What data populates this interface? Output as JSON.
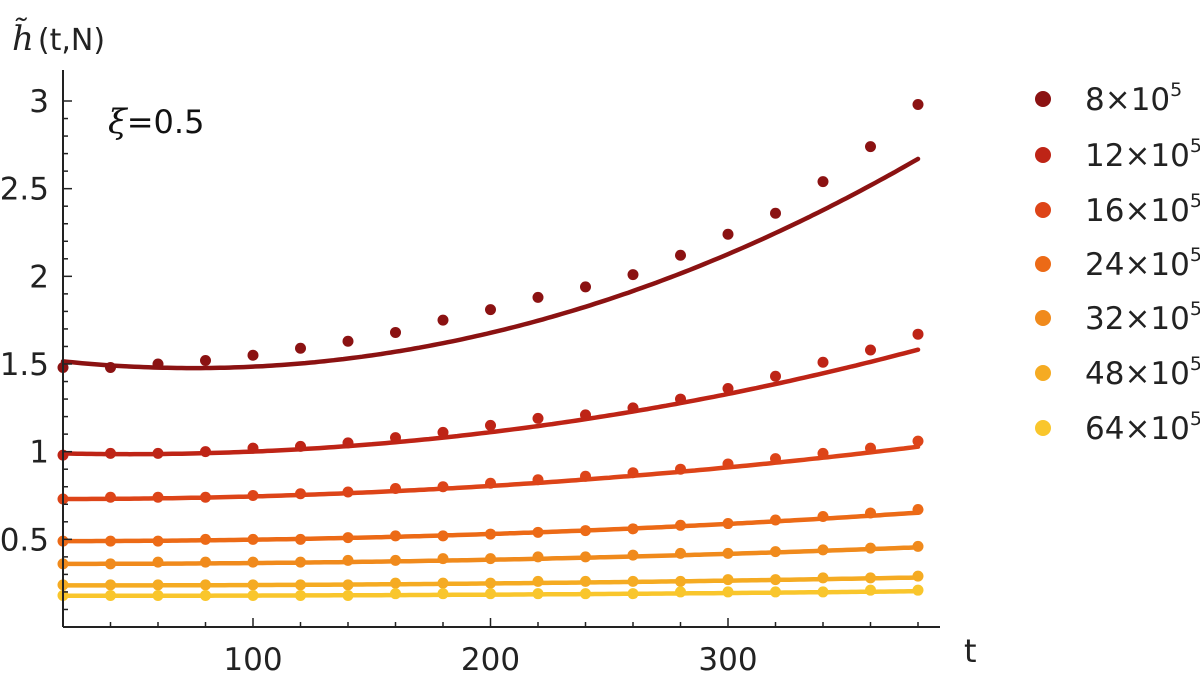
{
  "chart_data": {
    "type": "scatter",
    "ylabel": "h̃",
    "ylabel_args": "(t,N)",
    "xlabel": "t",
    "annotation": {
      "symbol": "ξ",
      "text": "=0.5"
    },
    "xlim": [
      20,
      400
    ],
    "ylim": [
      0,
      3.15
    ],
    "x_ticks": [
      100,
      200,
      300
    ],
    "y_ticks": [
      0.5,
      1,
      1.5,
      2,
      2.5,
      3
    ],
    "x_tick_labels": [
      "100",
      "200",
      "300"
    ],
    "y_tick_labels": [
      "0.5",
      "1",
      "1.5",
      "2",
      "2.5",
      "3"
    ],
    "legend_position": "right",
    "x": [
      20,
      40,
      60,
      80,
      100,
      120,
      140,
      160,
      180,
      200,
      220,
      240,
      260,
      280,
      300,
      320,
      340,
      360,
      380
    ],
    "series": [
      {
        "name": "8×10",
        "exp": "5",
        "color": "#8b1212",
        "values": [
          1.48,
          1.48,
          1.5,
          1.52,
          1.55,
          1.59,
          1.63,
          1.68,
          1.75,
          1.81,
          1.88,
          1.94,
          2.01,
          2.12,
          2.24,
          2.36,
          2.54,
          2.74,
          2.98
        ],
        "fit": [
          1.515,
          -0.0014,
          1.28e-05
        ]
      },
      {
        "name": "12×10",
        "exp": "5",
        "color": "#be2416",
        "values": [
          0.98,
          0.99,
          0.99,
          1.0,
          1.02,
          1.03,
          1.05,
          1.08,
          1.11,
          1.15,
          1.19,
          1.21,
          1.25,
          1.3,
          1.36,
          1.43,
          1.51,
          1.58,
          1.67
        ],
        "fit": [
          0.99,
          -0.0003,
          5.4e-06
        ]
      },
      {
        "name": "16×10",
        "exp": "5",
        "color": "#dd4418",
        "values": [
          0.73,
          0.74,
          0.74,
          0.74,
          0.75,
          0.76,
          0.77,
          0.79,
          0.8,
          0.82,
          0.84,
          0.86,
          0.88,
          0.9,
          0.93,
          0.96,
          0.99,
          1.02,
          1.06
        ],
        "fit": [
          0.73,
          0.0,
          2.3e-06
        ]
      },
      {
        "name": "24×10",
        "exp": "5",
        "color": "#ec6a16",
        "values": [
          0.49,
          0.49,
          0.49,
          0.5,
          0.5,
          0.5,
          0.51,
          0.52,
          0.52,
          0.53,
          0.54,
          0.55,
          0.56,
          0.58,
          0.59,
          0.61,
          0.63,
          0.65,
          0.67
        ],
        "fit": [
          0.49,
          0.0,
          1.25e-06
        ]
      },
      {
        "name": "32×10",
        "exp": "5",
        "color": "#f08a1c",
        "values": [
          0.36,
          0.36,
          0.37,
          0.37,
          0.37,
          0.37,
          0.38,
          0.38,
          0.39,
          0.39,
          0.4,
          0.4,
          0.41,
          0.42,
          0.42,
          0.43,
          0.44,
          0.45,
          0.46
        ],
        "fit": [
          0.36,
          0.0,
          7.3e-07
        ]
      },
      {
        "name": "48×10",
        "exp": "5",
        "color": "#f5ab22",
        "values": [
          0.24,
          0.24,
          0.24,
          0.24,
          0.24,
          0.24,
          0.24,
          0.25,
          0.25,
          0.25,
          0.26,
          0.26,
          0.26,
          0.26,
          0.27,
          0.27,
          0.28,
          0.28,
          0.29
        ],
        "fit": [
          0.237,
          0.0,
          3.5e-07
        ]
      },
      {
        "name": "64×10",
        "exp": "5",
        "color": "#f9c62c",
        "values": [
          0.18,
          0.18,
          0.18,
          0.18,
          0.18,
          0.18,
          0.18,
          0.19,
          0.19,
          0.19,
          0.19,
          0.19,
          0.19,
          0.2,
          0.2,
          0.2,
          0.2,
          0.21,
          0.21
        ],
        "fit": [
          0.178,
          0.0,
          2e-07
        ]
      }
    ]
  }
}
